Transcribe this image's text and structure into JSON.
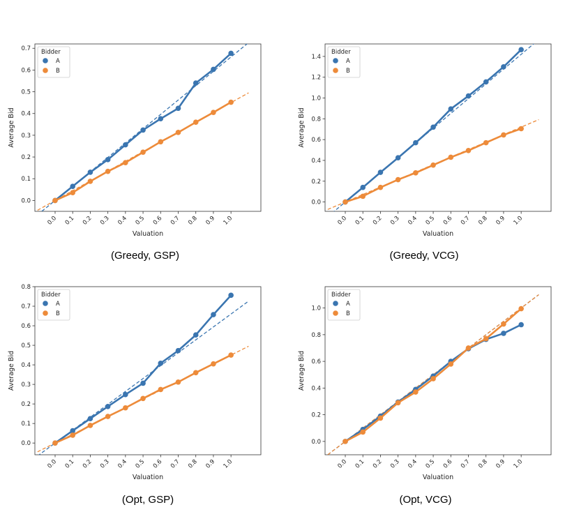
{
  "figure": {
    "colors": {
      "A": "#3a75b0",
      "B": "#ed8b3a"
    }
  },
  "chart_data": [
    {
      "type": "line",
      "caption": "(Greedy, GSP)",
      "xlabel": "Valuation",
      "ylabel": "Average Bid",
      "legend_title": "Bidder",
      "legend_position": "top-left",
      "x": [
        0.0,
        0.1,
        0.2,
        0.3,
        0.4,
        0.5,
        0.6,
        0.7,
        0.8,
        0.9,
        1.0
      ],
      "x_tick_labels": [
        "0.0",
        "0.1",
        "0.2",
        "0.3",
        "0.4",
        "0.5",
        "0.6",
        "0.7",
        "0.8",
        "0.9",
        "1.0"
      ],
      "ylim": [
        -0.05,
        0.72
      ],
      "y_ticks": [
        0.0,
        0.1,
        0.2,
        0.3,
        0.4,
        0.5,
        0.6,
        0.7
      ],
      "y_tick_labels": [
        "0.0",
        "0.1",
        "0.2",
        "0.3",
        "0.4",
        "0.5",
        "0.6",
        "0.7"
      ],
      "grid": false,
      "series": [
        {
          "name": "A",
          "values": [
            0.0,
            0.065,
            0.13,
            0.188,
            0.256,
            0.324,
            0.376,
            0.424,
            0.54,
            0.603,
            0.677
          ],
          "fit_slope": 0.66
        },
        {
          "name": "B",
          "values": [
            0.0,
            0.036,
            0.088,
            0.134,
            0.174,
            0.222,
            0.27,
            0.313,
            0.36,
            0.405,
            0.452
          ],
          "fit_slope": 0.45
        }
      ]
    },
    {
      "type": "line",
      "caption": "(Greedy, VCG)",
      "xlabel": "Valuation",
      "ylabel": "Average Bid",
      "legend_title": "Bidder",
      "legend_position": "top-left",
      "x": [
        0.0,
        0.1,
        0.2,
        0.3,
        0.4,
        0.5,
        0.6,
        0.7,
        0.8,
        0.9,
        1.0
      ],
      "x_tick_labels": [
        "0.0",
        "0.1",
        "0.2",
        "0.3",
        "0.4",
        "0.5",
        "0.6",
        "0.7",
        "0.8",
        "0.9",
        "1.0"
      ],
      "ylim": [
        -0.09,
        1.52
      ],
      "y_ticks": [
        0.0,
        0.2,
        0.4,
        0.6,
        0.8,
        1.0,
        1.2,
        1.4
      ],
      "y_tick_labels": [
        "0.0",
        "0.2",
        "0.4",
        "0.6",
        "0.8",
        "1.0",
        "1.2",
        "1.4"
      ],
      "grid": false,
      "series": [
        {
          "name": "A",
          "values": [
            0.0,
            0.14,
            0.285,
            0.425,
            0.57,
            0.72,
            0.895,
            1.02,
            1.155,
            1.3,
            1.465
          ],
          "fit_slope": 1.42
        },
        {
          "name": "B",
          "values": [
            0.0,
            0.055,
            0.14,
            0.215,
            0.28,
            0.355,
            0.43,
            0.495,
            0.57,
            0.645,
            0.705
          ],
          "fit_slope": 0.72
        }
      ]
    },
    {
      "type": "line",
      "caption": "(Opt, GSP)",
      "xlabel": "Valuation",
      "ylabel": "Average Bid",
      "legend_title": "Bidder",
      "legend_position": "top-left",
      "x": [
        0.0,
        0.1,
        0.2,
        0.3,
        0.4,
        0.5,
        0.6,
        0.7,
        0.8,
        0.9,
        1.0
      ],
      "x_tick_labels": [
        "0.0",
        "0.1",
        "0.2",
        "0.3",
        "0.4",
        "0.5",
        "0.6",
        "0.7",
        "0.8",
        "0.9",
        "1.0"
      ],
      "ylim": [
        -0.06,
        0.8
      ],
      "y_ticks": [
        0.0,
        0.1,
        0.2,
        0.3,
        0.4,
        0.5,
        0.6,
        0.7,
        0.8
      ],
      "y_tick_labels": [
        "0.0",
        "0.1",
        "0.2",
        "0.3",
        "0.4",
        "0.5",
        "0.6",
        "0.7",
        "0.8"
      ],
      "grid": false,
      "series": [
        {
          "name": "A",
          "values": [
            0.0,
            0.063,
            0.125,
            0.187,
            0.248,
            0.306,
            0.408,
            0.473,
            0.553,
            0.657,
            0.756
          ],
          "fit_slope": 0.66
        },
        {
          "name": "B",
          "values": [
            0.0,
            0.04,
            0.09,
            0.136,
            0.18,
            0.228,
            0.274,
            0.312,
            0.36,
            0.405,
            0.45
          ],
          "fit_slope": 0.45
        }
      ]
    },
    {
      "type": "line",
      "caption": "(Opt, VCG)",
      "xlabel": "Valuation",
      "ylabel": "Average Bid",
      "legend_title": "Bidder",
      "legend_position": "top-left",
      "x": [
        0.0,
        0.1,
        0.2,
        0.3,
        0.4,
        0.5,
        0.6,
        0.7,
        0.8,
        0.9,
        1.0
      ],
      "x_tick_labels": [
        "0.0",
        "0.1",
        "0.2",
        "0.3",
        "0.4",
        "0.5",
        "0.6",
        "0.7",
        "0.8",
        "0.9",
        "1.0"
      ],
      "ylim": [
        -0.1,
        1.16
      ],
      "y_ticks": [
        0.0,
        0.2,
        0.4,
        0.6,
        0.8,
        1.0
      ],
      "y_tick_labels": [
        "0.0",
        "0.2",
        "0.4",
        "0.6",
        "0.8",
        "1.0"
      ],
      "grid": false,
      "series": [
        {
          "name": "A",
          "values": [
            0.0,
            0.09,
            0.19,
            0.295,
            0.39,
            0.49,
            0.6,
            0.695,
            0.765,
            0.81,
            0.875
          ],
          "fit_slope": 1.0
        },
        {
          "name": "B",
          "values": [
            0.0,
            0.07,
            0.175,
            0.29,
            0.37,
            0.47,
            0.58,
            0.7,
            0.77,
            0.88,
            0.995
          ],
          "fit_slope": 1.0
        }
      ]
    }
  ]
}
